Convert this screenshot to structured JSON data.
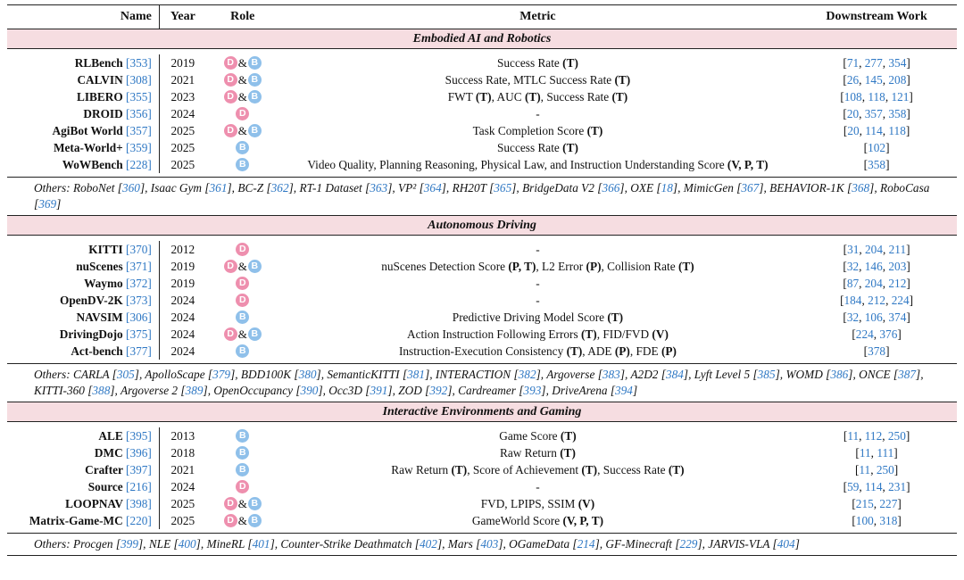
{
  "header": {
    "name": "Name",
    "year": "Year",
    "role": "Role",
    "metric": "Metric",
    "downstream": "Downstream Work"
  },
  "legend_letters": {
    "D": "D",
    "B": "B",
    "amp": "&"
  },
  "sections": [
    {
      "title": "Embodied AI and Robotics",
      "rows": [
        {
          "name": "RLBench",
          "ref": "353",
          "year": "2019",
          "role": [
            "D",
            "B"
          ],
          "metric": [
            {
              "t": "Success Rate "
            },
            {
              "b": "(T)"
            }
          ],
          "down": [
            "71",
            "277",
            "354"
          ]
        },
        {
          "name": "CALVIN",
          "ref": "308",
          "year": "2021",
          "role": [
            "D",
            "B"
          ],
          "metric": [
            {
              "t": "Success Rate, MTLC Success Rate "
            },
            {
              "b": "(T)"
            }
          ],
          "down": [
            "26",
            "145",
            "208"
          ]
        },
        {
          "name": "LIBERO",
          "ref": "355",
          "year": "2023",
          "role": [
            "D",
            "B"
          ],
          "metric": [
            {
              "t": "FWT "
            },
            {
              "b": "(T)"
            },
            {
              "t": ", AUC "
            },
            {
              "b": "(T)"
            },
            {
              "t": ", Success Rate "
            },
            {
              "b": "(T)"
            }
          ],
          "down": [
            "108",
            "118",
            "121"
          ]
        },
        {
          "name": "DROID",
          "ref": "356",
          "year": "2024",
          "role": [
            "D"
          ],
          "metric": [
            {
              "t": "-"
            }
          ],
          "down": [
            "20",
            "357",
            "358"
          ]
        },
        {
          "name": "AgiBot World",
          "ref": "357",
          "year": "2025",
          "role": [
            "D",
            "B"
          ],
          "metric": [
            {
              "t": "Task Completion Score "
            },
            {
              "b": "(T)"
            }
          ],
          "down": [
            "20",
            "114",
            "118"
          ]
        },
        {
          "name": "Meta-World+",
          "ref": "359",
          "year": "2025",
          "role": [
            "B"
          ],
          "metric": [
            {
              "t": "Success Rate "
            },
            {
              "b": "(T)"
            }
          ],
          "down": [
            "102"
          ]
        },
        {
          "name": "WoWBench",
          "ref": "228",
          "year": "2025",
          "role": [
            "B"
          ],
          "metric": [
            {
              "t": "Video Quality, Planning Reasoning, Physical Law, and Instruction Understanding Score "
            },
            {
              "b": "(V, P, T)"
            }
          ],
          "down": [
            "358"
          ]
        }
      ],
      "others_label": "Others:",
      "others": [
        {
          "n": "RoboNet",
          "r": "360"
        },
        {
          "n": "Isaac Gym",
          "r": "361"
        },
        {
          "n": "BC-Z",
          "r": "362"
        },
        {
          "n": "RT-1 Dataset",
          "r": "363"
        },
        {
          "n": "VP²",
          "r": "364"
        },
        {
          "n": "RH20T",
          "r": "365"
        },
        {
          "n": "BridgeData V2",
          "r": "366"
        },
        {
          "n": "OXE",
          "r": "18"
        },
        {
          "n": "MimicGen",
          "r": "367"
        },
        {
          "n": "BEHAVIOR-1K",
          "r": "368"
        },
        {
          "n": "RoboCasa",
          "r": "369"
        }
      ]
    },
    {
      "title": "Autonomous Driving",
      "rows": [
        {
          "name": "KITTI",
          "ref": "370",
          "year": "2012",
          "role": [
            "D"
          ],
          "metric": [
            {
              "t": "-"
            }
          ],
          "down": [
            "31",
            "204",
            "211"
          ]
        },
        {
          "name": "nuScenes",
          "ref": "371",
          "year": "2019",
          "role": [
            "D",
            "B"
          ],
          "metric": [
            {
              "t": "nuScenes Detection Score "
            },
            {
              "b": "(P, T)"
            },
            {
              "t": ", L2 Error "
            },
            {
              "b": "(P)"
            },
            {
              "t": ", Collision Rate "
            },
            {
              "b": "(T)"
            }
          ],
          "down": [
            "32",
            "146",
            "203"
          ]
        },
        {
          "name": "Waymo",
          "ref": "372",
          "year": "2019",
          "role": [
            "D"
          ],
          "metric": [
            {
              "t": "-"
            }
          ],
          "down": [
            "87",
            "204",
            "212"
          ]
        },
        {
          "name": "OpenDV-2K",
          "ref": "373",
          "year": "2024",
          "role": [
            "D"
          ],
          "metric": [
            {
              "t": "-"
            }
          ],
          "down": [
            "184",
            "212",
            "224"
          ]
        },
        {
          "name": "NAVSIM",
          "ref": "306",
          "year": "2024",
          "role": [
            "B"
          ],
          "metric": [
            {
              "t": "Predictive Driving Model Score "
            },
            {
              "b": "(T)"
            }
          ],
          "down": [
            "32",
            "106",
            "374"
          ]
        },
        {
          "name": "DrivingDojo",
          "ref": "375",
          "year": "2024",
          "role": [
            "D",
            "B"
          ],
          "metric": [
            {
              "t": "Action Instruction Following Errors "
            },
            {
              "b": "(T)"
            },
            {
              "t": ", FID/FVD "
            },
            {
              "b": "(V)"
            }
          ],
          "down": [
            "224",
            "376"
          ]
        },
        {
          "name": "Act-bench",
          "ref": "377",
          "year": "2024",
          "role": [
            "B"
          ],
          "metric": [
            {
              "t": "Instruction-Execution Consistency "
            },
            {
              "b": "(T)"
            },
            {
              "t": ", ADE "
            },
            {
              "b": "(P)"
            },
            {
              "t": ", FDE "
            },
            {
              "b": "(P)"
            }
          ],
          "down": [
            "378"
          ]
        }
      ],
      "others_label": "Others:",
      "others": [
        {
          "n": "CARLA",
          "r": "305"
        },
        {
          "n": "ApolloScape",
          "r": "379"
        },
        {
          "n": "BDD100K",
          "r": "380"
        },
        {
          "n": "SemanticKITTI",
          "r": "381"
        },
        {
          "n": "INTERACTION",
          "r": "382"
        },
        {
          "n": "Argoverse",
          "r": "383"
        },
        {
          "n": "A2D2",
          "r": "384"
        },
        {
          "n": "Lyft Level 5",
          "r": "385"
        },
        {
          "n": "WOMD",
          "r": "386"
        },
        {
          "n": "ONCE",
          "r": "387"
        },
        {
          "n": "KITTI-360",
          "r": "388"
        },
        {
          "n": "Argoverse 2",
          "r": "389"
        },
        {
          "n": "OpenOccupancy",
          "r": "390"
        },
        {
          "n": "Occ3D",
          "r": "391"
        },
        {
          "n": "ZOD",
          "r": "392"
        },
        {
          "n": "Cardreamer",
          "r": "393"
        },
        {
          "n": "DriveArena",
          "r": "394"
        }
      ]
    },
    {
      "title": "Interactive Environments and Gaming",
      "rows": [
        {
          "name": "ALE",
          "ref": "395",
          "year": "2013",
          "role": [
            "B"
          ],
          "metric": [
            {
              "t": "Game Score "
            },
            {
              "b": "(T)"
            }
          ],
          "down": [
            "11",
            "112",
            "250"
          ]
        },
        {
          "name": "DMC",
          "ref": "396",
          "year": "2018",
          "role": [
            "B"
          ],
          "metric": [
            {
              "t": "Raw Return "
            },
            {
              "b": "(T)"
            }
          ],
          "down": [
            "11",
            "111"
          ]
        },
        {
          "name": "Crafter",
          "ref": "397",
          "year": "2021",
          "role": [
            "B"
          ],
          "metric": [
            {
              "t": "Raw Return "
            },
            {
              "b": "(T)"
            },
            {
              "t": ", Score of Achievement "
            },
            {
              "b": "(T)"
            },
            {
              "t": ", Success Rate "
            },
            {
              "b": "(T)"
            }
          ],
          "down": [
            "11",
            "250"
          ]
        },
        {
          "name": "Source",
          "ref": "216",
          "year": "2024",
          "role": [
            "D"
          ],
          "metric": [
            {
              "t": "-"
            }
          ],
          "down": [
            "59",
            "114",
            "231"
          ]
        },
        {
          "name": "LOOPNAV",
          "ref": "398",
          "year": "2025",
          "role": [
            "D",
            "B"
          ],
          "metric": [
            {
              "t": "FVD, LPIPS, SSIM "
            },
            {
              "b": "(V)"
            }
          ],
          "down": [
            "215",
            "227"
          ]
        },
        {
          "name": "Matrix-Game-MC",
          "ref": "220",
          "year": "2025",
          "role": [
            "D",
            "B"
          ],
          "metric": [
            {
              "t": "GameWorld Score "
            },
            {
              "b": "(V, P, T)"
            }
          ],
          "down": [
            "100",
            "318"
          ]
        }
      ],
      "others_label": "Others:",
      "others": [
        {
          "n": "Procgen",
          "r": "399"
        },
        {
          "n": "NLE",
          "r": "400"
        },
        {
          "n": "MineRL",
          "r": "401"
        },
        {
          "n": "Counter-Strike Deathmatch",
          "r": "402"
        },
        {
          "n": "Mars",
          "r": "403"
        },
        {
          "n": "OGameData",
          "r": "214"
        },
        {
          "n": "GF-Minecraft",
          "r": "229"
        },
        {
          "n": "JARVIS-VLA",
          "r": "404"
        }
      ]
    }
  ],
  "colors": {
    "section_bg": "#f6dde1",
    "ref": "#2f78c4",
    "badge_d": "#ee8fae",
    "badge_b": "#8fc0ea"
  }
}
